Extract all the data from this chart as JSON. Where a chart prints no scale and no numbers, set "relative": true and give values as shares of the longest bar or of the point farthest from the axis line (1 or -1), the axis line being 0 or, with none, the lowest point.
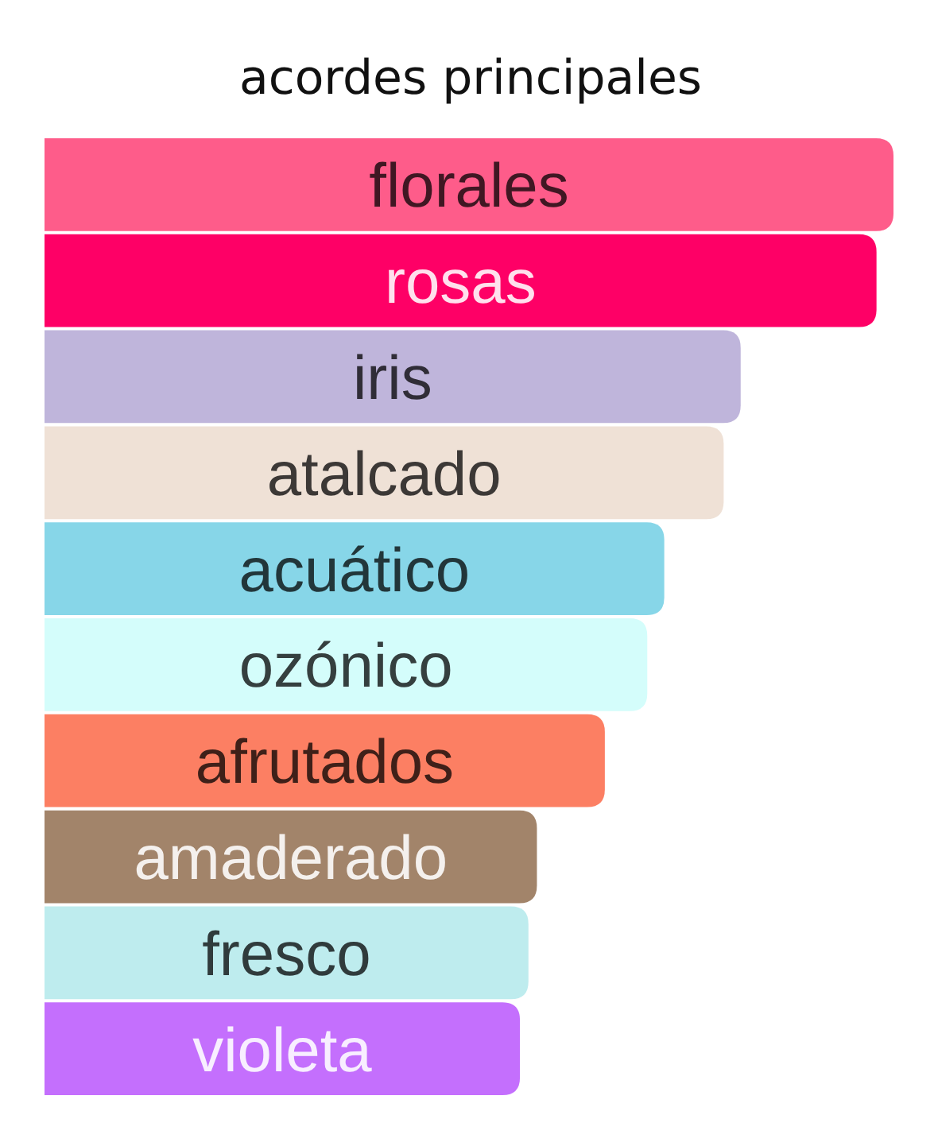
{
  "chart_data": {
    "type": "bar",
    "orientation": "horizontal",
    "relative": true,
    "title": "acordes principales",
    "categories": [
      "florales",
      "rosas",
      "iris",
      "atalcado",
      "acuático",
      "ozónico",
      "afrutados",
      "amaderado",
      "fresco",
      "violeta"
    ],
    "values": [
      1,
      0.98,
      0.82,
      0.8,
      0.73,
      0.71,
      0.66,
      0.58,
      0.57,
      0.56
    ],
    "colors": [
      "#fe5c8a",
      "#fe0066",
      "#bfb5db",
      "#efe1d6",
      "#87d6e8",
      "#d4fdfb",
      "#fc7f63",
      "#a2846a",
      "#beecee",
      "#c46ffd"
    ]
  }
}
